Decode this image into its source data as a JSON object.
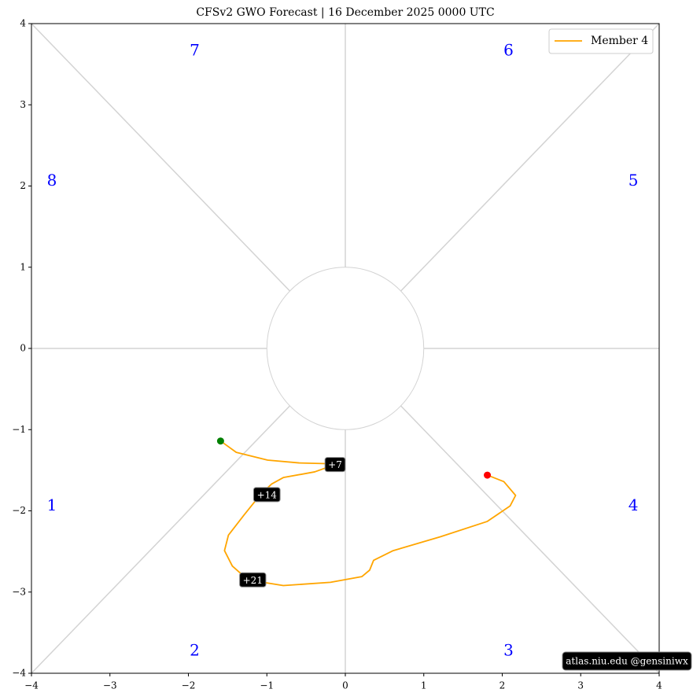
{
  "chart_data": {
    "type": "line",
    "title": "CFSv2 GWO Forecast   |   16  December  2025 0000 UTC",
    "series": [
      {
        "name": "Member 4",
        "color": "orange",
        "x": [
          -1.59,
          -1.39,
          -0.99,
          -0.59,
          -0.19,
          -0.13,
          -0.39,
          -0.79,
          -0.94,
          -1.09,
          -1.29,
          -1.49,
          -1.54,
          -1.44,
          -1.24,
          -0.79,
          -0.19,
          0.21,
          0.31,
          0.36,
          0.61,
          1.21,
          1.81,
          2.1,
          2.17,
          2.02,
          1.81
        ],
        "y": [
          -1.14,
          -1.28,
          -1.375,
          -1.41,
          -1.42,
          -1.43,
          -1.52,
          -1.59,
          -1.67,
          -1.81,
          -2.05,
          -2.3,
          -2.49,
          -2.68,
          -2.85,
          -2.92,
          -2.88,
          -2.81,
          -2.73,
          -2.61,
          -2.49,
          -2.32,
          -2.13,
          -1.94,
          -1.81,
          -1.64,
          -1.56
        ]
      }
    ],
    "start_color": "green",
    "end_color": "red",
    "annotations": [
      {
        "text": "+7",
        "x": -0.13,
        "y": -1.43
      },
      {
        "text": "+14",
        "x": -1.0,
        "y": -1.8
      },
      {
        "text": "+21",
        "x": -1.18,
        "y": -2.85
      }
    ],
    "phase_labels": [
      {
        "text": "1",
        "x": -3.74,
        "y": -1.94
      },
      {
        "text": "2",
        "x": -1.92,
        "y": -3.73
      },
      {
        "text": "3",
        "x": 2.08,
        "y": -3.73
      },
      {
        "text": "4",
        "x": 3.67,
        "y": -1.94
      },
      {
        "text": "5",
        "x": 3.67,
        "y": 2.06
      },
      {
        "text": "6",
        "x": 2.08,
        "y": 3.66
      },
      {
        "text": "7",
        "x": -1.92,
        "y": 3.66
      },
      {
        "text": "8",
        "x": -3.74,
        "y": 2.06
      }
    ],
    "phase_color": "blue",
    "xlim": [
      -4,
      4
    ],
    "ylim": [
      -4,
      4
    ],
    "xticks": [
      {
        "value": -4,
        "label": "−4"
      },
      {
        "value": -3,
        "label": "−3"
      },
      {
        "value": -2,
        "label": "−2"
      },
      {
        "value": -1,
        "label": "−1"
      },
      0,
      1,
      2,
      3,
      4
    ],
    "yticks": [
      {
        "value": -4,
        "label": "−4"
      },
      {
        "value": -3,
        "label": "−3"
      },
      {
        "value": -2,
        "label": "−2"
      },
      {
        "value": -1,
        "label": "−1"
      },
      0,
      1,
      2,
      3,
      4
    ],
    "legend": "upper right",
    "watermark": "atlas.niu.edu  @gensiniwx"
  }
}
